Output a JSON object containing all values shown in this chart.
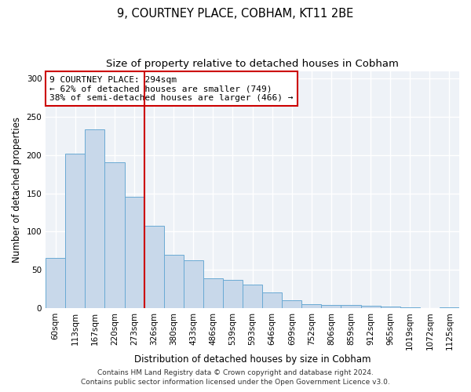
{
  "title": "9, COURTNEY PLACE, COBHAM, KT11 2BE",
  "subtitle": "Size of property relative to detached houses in Cobham",
  "xlabel": "Distribution of detached houses by size in Cobham",
  "ylabel": "Number of detached properties",
  "bar_labels": [
    "60sqm",
    "113sqm",
    "167sqm",
    "220sqm",
    "273sqm",
    "326sqm",
    "380sqm",
    "433sqm",
    "486sqm",
    "539sqm",
    "593sqm",
    "646sqm",
    "699sqm",
    "752sqm",
    "806sqm",
    "859sqm",
    "912sqm",
    "965sqm",
    "1019sqm",
    "1072sqm",
    "1125sqm"
  ],
  "bar_values": [
    65,
    202,
    234,
    191,
    145,
    108,
    70,
    62,
    39,
    37,
    31,
    20,
    10,
    5,
    4,
    4,
    3,
    2,
    1,
    0,
    1
  ],
  "bar_color": "#c8d8ea",
  "bar_edge_color": "#6aaad4",
  "vline_x_index": 4,
  "vline_color": "#cc0000",
  "annotation_text": "9 COURTNEY PLACE: 294sqm\n← 62% of detached houses are smaller (749)\n38% of semi-detached houses are larger (466) →",
  "annotation_box_facecolor": "#ffffff",
  "annotation_box_edgecolor": "#cc0000",
  "ylim": [
    0,
    310
  ],
  "yticks": [
    0,
    50,
    100,
    150,
    200,
    250,
    300
  ],
  "footer1": "Contains HM Land Registry data © Crown copyright and database right 2024.",
  "footer2": "Contains public sector information licensed under the Open Government Licence v3.0.",
  "bg_color": "#ffffff",
  "plot_bg_color": "#eef2f7",
  "grid_color": "#ffffff",
  "title_fontsize": 10.5,
  "subtitle_fontsize": 9.5,
  "axis_label_fontsize": 8.5,
  "tick_fontsize": 7.5,
  "annotation_fontsize": 8,
  "footer_fontsize": 6.5
}
